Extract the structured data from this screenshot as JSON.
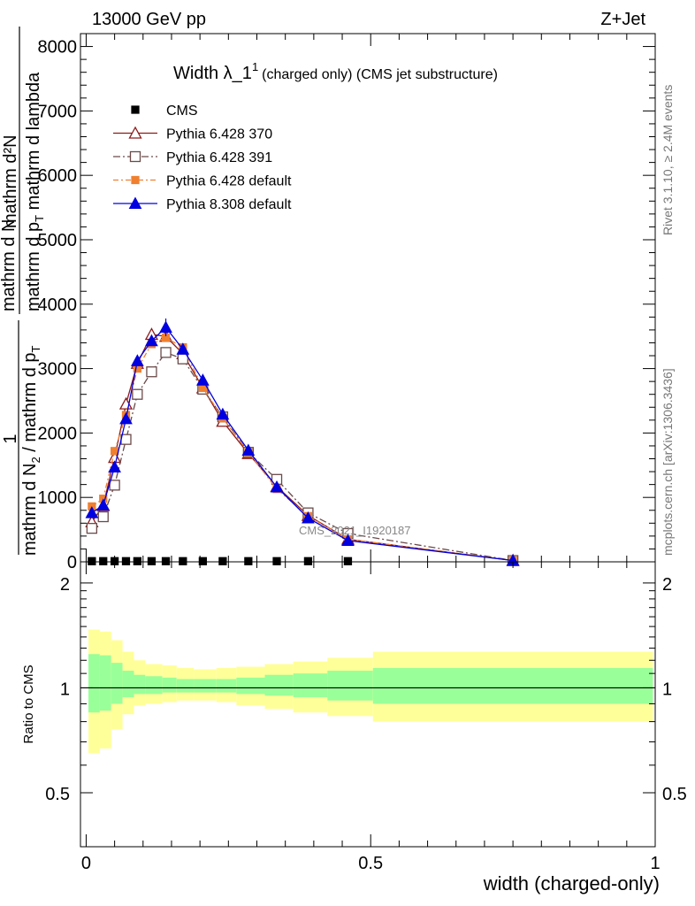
{
  "header": {
    "left": "13000 GeV pp",
    "right": "Z+Jet"
  },
  "title": {
    "main": "Width λ_1",
    "sup": "1",
    "sub": "(charged only) (CMS jet substructure)"
  },
  "side_texts": {
    "rivet": "Rivet 3.1.10, ≥ 2.4M events",
    "mcplots": "mcplots.cern.ch [arXiv:1306.3436]"
  },
  "watermark": "CMS_2021_I1920187",
  "ylabel_main": {
    "one": "1",
    "num": "mathrm d N",
    "den": "mathrm d N",
    "den_sub": "2",
    "den_rest": " / mathrm d p",
    "den_rest_sub": "T",
    "top_num": "mathrm d²N",
    "top_den": "mathrm d p",
    "top_den_sub": "T",
    "top_den_rest": " mathrm d lambda"
  },
  "ylabel_ratio": "Ratio to CMS",
  "xlabel": "width (charged-only)",
  "colors": {
    "cms": "#000000",
    "p370": "#8b1a1a",
    "p391": "#6b4a4a",
    "p6def": "#f08030",
    "p8def": "#0000e0",
    "band_outer": "#ffff99",
    "band_inner": "#99ff99"
  },
  "chart_data": [
    {
      "type": "line",
      "xlim": [
        -0.01,
        1.0
      ],
      "ylim": [
        0,
        8200
      ],
      "yticks": [
        {
          "v": 0,
          "label": "0"
        },
        {
          "v": 1000,
          "label": "1000"
        },
        {
          "v": 2000,
          "label": "2000"
        },
        {
          "v": 3000,
          "label": "3000"
        },
        {
          "v": 4000,
          "label": "4000"
        },
        {
          "v": 5000,
          "label": "5000"
        },
        {
          "v": 6000,
          "label": "6000"
        },
        {
          "v": 7000,
          "label": "7000"
        },
        {
          "v": 8000,
          "label": "8000"
        }
      ],
      "x": [
        0.01,
        0.03,
        0.05,
        0.07,
        0.09,
        0.115,
        0.14,
        0.17,
        0.205,
        0.24,
        0.285,
        0.335,
        0.39,
        0.46,
        0.75
      ],
      "series": [
        {
          "name": "CMS",
          "key": "cms",
          "marker": "square",
          "values": [
            10,
            10,
            10,
            10,
            10,
            10,
            10,
            10,
            10,
            10,
            10,
            10,
            10,
            10,
            null
          ]
        },
        {
          "name": "Pythia 6.428 370",
          "key": "p370",
          "marker": "triangle-open",
          "dash": "",
          "values": [
            620,
            870,
            1620,
            2450,
            3080,
            3530,
            3500,
            3230,
            2700,
            2180,
            1680,
            1170,
            720,
            350,
            20
          ]
        },
        {
          "name": "Pythia 6.428 391",
          "key": "p391",
          "marker": "square-open",
          "dash": "8,3,2,3",
          "values": [
            520,
            700,
            1190,
            1900,
            2600,
            2950,
            3250,
            3150,
            2680,
            2250,
            1700,
            1280,
            760,
            440,
            20
          ]
        },
        {
          "name": "Pythia 6.428 default",
          "key": "p6def",
          "marker": "square",
          "dash": "6,3,2,3",
          "values": [
            860,
            980,
            1720,
            2280,
            3000,
            3380,
            3480,
            3330,
            2700,
            2230,
            1700,
            1130,
            710,
            350,
            20
          ]
        },
        {
          "name": "Pythia 8.308 default",
          "key": "p8def",
          "marker": "triangle",
          "dash": "",
          "values": [
            760,
            880,
            1470,
            2220,
            3120,
            3430,
            3640,
            3300,
            2820,
            2290,
            1730,
            1160,
            680,
            330,
            20
          ]
        }
      ]
    },
    {
      "type": "area",
      "xlabel": "width (charged-only)",
      "ylabel": "Ratio to CMS",
      "xlim": [
        -0.01,
        1.0
      ],
      "ylim": [
        0.35,
        2.3
      ],
      "yticks": [
        {
          "v": 0.5,
          "label": "0.5"
        },
        {
          "v": 1,
          "label": "1"
        },
        {
          "v": 2,
          "label": "2"
        }
      ],
      "xticks": [
        {
          "v": 0,
          "label": "0"
        },
        {
          "v": 0.5,
          "label": "0.5"
        },
        {
          "v": 1,
          "label": "1"
        }
      ],
      "bins": [
        0.0,
        0.02,
        0.04,
        0.06,
        0.08,
        0.1,
        0.13,
        0.155,
        0.185,
        0.225,
        0.26,
        0.31,
        0.36,
        0.42,
        0.5,
        1.0
      ],
      "band_outer_hi": [
        1.47,
        1.45,
        1.37,
        1.27,
        1.2,
        1.17,
        1.16,
        1.14,
        1.13,
        1.14,
        1.15,
        1.17,
        1.19,
        1.22,
        1.27
      ],
      "band_outer_lo": [
        0.65,
        0.67,
        0.76,
        0.84,
        0.89,
        0.9,
        0.91,
        0.92,
        0.92,
        0.91,
        0.89,
        0.87,
        0.85,
        0.83,
        0.8
      ],
      "band_inner_hi": [
        1.25,
        1.24,
        1.18,
        1.12,
        1.09,
        1.08,
        1.07,
        1.06,
        1.06,
        1.06,
        1.07,
        1.09,
        1.1,
        1.12,
        1.14
      ],
      "band_inner_lo": [
        0.85,
        0.86,
        0.9,
        0.94,
        0.96,
        0.96,
        0.97,
        0.97,
        0.97,
        0.97,
        0.96,
        0.95,
        0.94,
        0.92,
        0.9
      ]
    }
  ]
}
